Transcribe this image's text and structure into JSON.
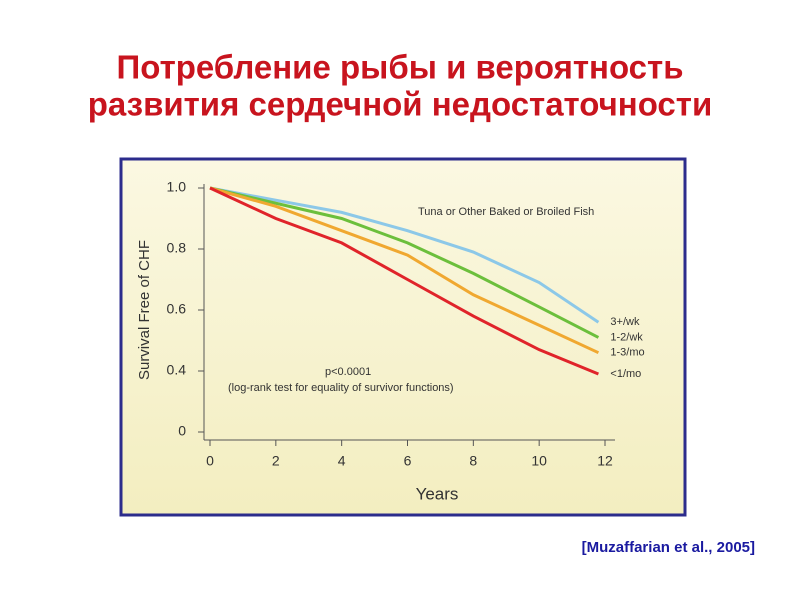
{
  "title": [
    "Потребление рыбы и вероятность",
    "развития сердечной недостаточности"
  ],
  "citation": "[Muzaffarian et al., 2005]",
  "chart_data": {
    "type": "line",
    "ylabel": "Survival Free of CHF",
    "xlabel": "Years",
    "annotation": "Tuna or Other Baked or Broiled Fish",
    "stat_text": [
      "p<0.0001",
      "(log-rank test for equality of survivor functions)"
    ],
    "x": [
      0,
      2,
      4,
      6,
      8,
      10,
      11.8
    ],
    "xlim": [
      0,
      12
    ],
    "xticks": [
      0,
      2,
      4,
      6,
      8,
      10,
      12
    ],
    "ylim": [
      0,
      1.0
    ],
    "yticks": [
      0,
      0.4,
      0.6,
      0.8,
      {
        "value": 1.0,
        "label": "1.0"
      }
    ],
    "series": [
      {
        "name": "3+/wk",
        "color": "#8cc8e8",
        "values": [
          1.0,
          0.96,
          0.92,
          0.86,
          0.79,
          0.69,
          0.56
        ]
      },
      {
        "name": "1-2/wk",
        "color": "#6cbf3c",
        "values": [
          1.0,
          0.95,
          0.9,
          0.82,
          0.72,
          0.61,
          0.51
        ]
      },
      {
        "name": "1-3/mo",
        "color": "#f0a830",
        "values": [
          1.0,
          0.94,
          0.86,
          0.78,
          0.65,
          0.55,
          0.46
        ]
      },
      {
        "name": "<1/mo",
        "color": "#e0242a",
        "values": [
          1.0,
          0.9,
          0.82,
          0.7,
          0.58,
          0.47,
          0.38
        ]
      }
    ]
  }
}
